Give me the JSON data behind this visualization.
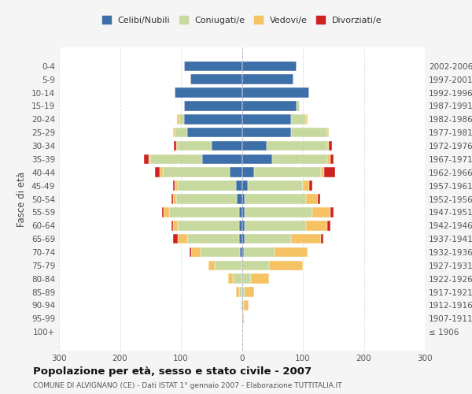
{
  "age_groups": [
    "100+",
    "95-99",
    "90-94",
    "85-89",
    "80-84",
    "75-79",
    "70-74",
    "65-69",
    "60-64",
    "55-59",
    "50-54",
    "45-49",
    "40-44",
    "35-39",
    "30-34",
    "25-29",
    "20-24",
    "15-19",
    "10-14",
    "5-9",
    "0-4"
  ],
  "birth_years": [
    "≤ 1906",
    "1907-1911",
    "1912-1916",
    "1917-1921",
    "1922-1926",
    "1927-1931",
    "1932-1936",
    "1937-1941",
    "1942-1946",
    "1947-1951",
    "1952-1956",
    "1957-1961",
    "1962-1966",
    "1967-1971",
    "1972-1976",
    "1977-1981",
    "1982-1986",
    "1987-1991",
    "1992-1996",
    "1997-2001",
    "2002-2006"
  ],
  "male": {
    "celibi": [
      0,
      0,
      0,
      0,
      0,
      0,
      3,
      5,
      5,
      5,
      8,
      10,
      20,
      65,
      50,
      90,
      95,
      95,
      110,
      85,
      95
    ],
    "coniugati": [
      0,
      0,
      2,
      5,
      15,
      45,
      65,
      85,
      100,
      115,
      100,
      95,
      110,
      85,
      55,
      20,
      8,
      0,
      0,
      0,
      0
    ],
    "vedovi": [
      0,
      0,
      0,
      5,
      8,
      10,
      15,
      15,
      8,
      8,
      5,
      5,
      5,
      3,
      3,
      3,
      3,
      0,
      0,
      0,
      0
    ],
    "divorziati": [
      0,
      0,
      0,
      0,
      0,
      0,
      3,
      8,
      3,
      3,
      3,
      3,
      8,
      8,
      3,
      0,
      0,
      0,
      0,
      0,
      0
    ]
  },
  "female": {
    "nubili": [
      0,
      0,
      0,
      0,
      0,
      0,
      3,
      5,
      5,
      5,
      5,
      10,
      20,
      50,
      40,
      80,
      80,
      90,
      110,
      85,
      90
    ],
    "coniugate": [
      0,
      0,
      3,
      5,
      15,
      45,
      50,
      75,
      100,
      110,
      100,
      90,
      110,
      90,
      100,
      60,
      25,
      5,
      0,
      0,
      0
    ],
    "vedove": [
      0,
      3,
      8,
      15,
      30,
      55,
      55,
      50,
      35,
      30,
      20,
      10,
      5,
      5,
      3,
      3,
      3,
      0,
      0,
      0,
      0
    ],
    "divorziate": [
      0,
      0,
      0,
      0,
      0,
      0,
      0,
      3,
      5,
      5,
      3,
      5,
      18,
      5,
      5,
      0,
      0,
      0,
      0,
      0,
      0
    ]
  },
  "colors": {
    "celibi": "#3d6fa8",
    "coniugati": "#c8d9a0",
    "vedovi": "#f5c264",
    "divorziati": "#cc2222"
  },
  "title": "Popolazione per età, sesso e stato civile - 2007",
  "subtitle": "COMUNE DI ALVIGNANO (CE) - Dati ISTAT 1° gennaio 2007 - Elaborazione TUTTITALIA.IT",
  "ylabel_left": "Fasce di età",
  "xlim": 300,
  "legend_labels": [
    "Celibi/Nubili",
    "Coniugati/e",
    "Vedovi/e",
    "Divorziati/e"
  ],
  "bg_color": "#f5f5f5",
  "plot_bg": "#ffffff",
  "grid_color": "#cccccc"
}
